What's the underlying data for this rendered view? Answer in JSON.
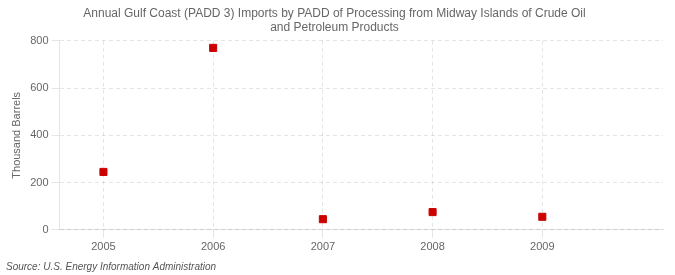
{
  "chart_data": {
    "type": "scatter",
    "title": "Annual Gulf Coast (PADD 3) Imports by PADD of Processing from Midway Islands of Crude Oil\nand Petroleum Products",
    "ylabel": "Thousand Barrels",
    "source": "Source: U.S. Energy Information Administration",
    "x": [
      2005,
      2006,
      2007,
      2008,
      2009
    ],
    "values": [
      245,
      770,
      45,
      75,
      55
    ],
    "color": "#cc0000",
    "marker": "square",
    "xlim": [
      2004.6,
      2010.1
    ],
    "xticks": [
      2005,
      2006,
      2007,
      2008,
      2009
    ],
    "ylim": [
      0,
      800
    ],
    "yticks": [
      0,
      200,
      400,
      600,
      800
    ],
    "grid": true
  }
}
